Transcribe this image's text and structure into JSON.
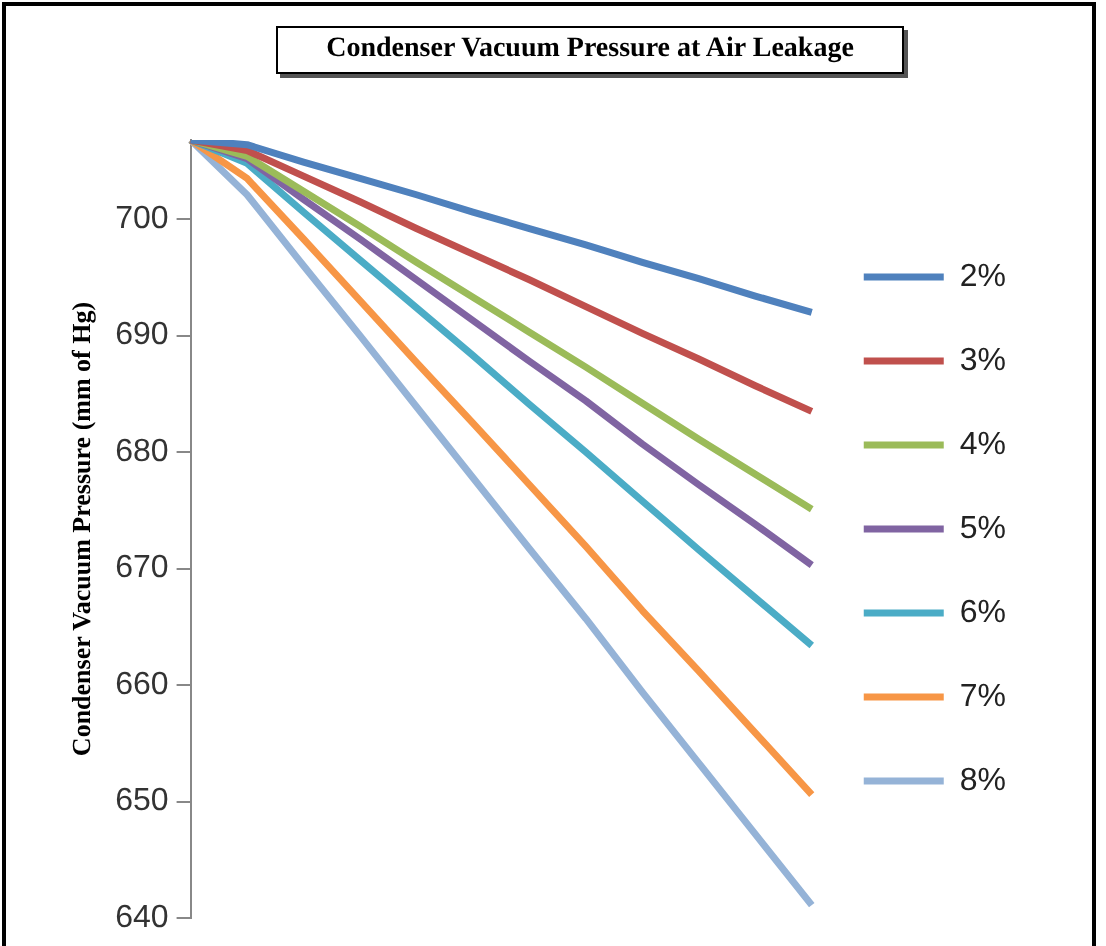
{
  "chart_data": {
    "type": "line",
    "title": "Condenser Vacuum Pressure at Air Leakage",
    "ylabel": "Condenser Vacuum Pressure (mm of Hg)",
    "categories": [
      null,
      null,
      null,
      null,
      null,
      null,
      null,
      null,
      null,
      null,
      null,
      null
    ],
    "series": [
      {
        "name": "2%",
        "color": "#4f81bd",
        "values": [
          706.8,
          706.4,
          704.9,
          703.5,
          702.1,
          700.6,
          699.2,
          697.8,
          696.3,
          694.9,
          693.4,
          692.0
        ]
      },
      {
        "name": "3%",
        "color": "#c0504d",
        "values": [
          706.8,
          705.9,
          703.7,
          701.5,
          699.2,
          697.0,
          694.8,
          692.5,
          690.2,
          688.0,
          685.7,
          683.5
        ]
      },
      {
        "name": "4%",
        "color": "#9bbb59",
        "values": [
          706.8,
          705.4,
          702.4,
          699.4,
          696.3,
          693.3,
          690.3,
          687.3,
          684.2,
          681.1,
          678.1,
          675.1
        ]
      },
      {
        "name": "5%",
        "color": "#8064a2",
        "values": [
          706.8,
          705.2,
          701.7,
          698.3,
          694.8,
          691.3,
          687.8,
          684.4,
          680.7,
          677.2,
          673.8,
          670.3
        ]
      },
      {
        "name": "6%",
        "color": "#4bacc6",
        "values": [
          706.8,
          704.8,
          700.6,
          696.5,
          692.4,
          688.3,
          684.1,
          680.0,
          675.8,
          671.6,
          667.5,
          663.4
        ]
      },
      {
        "name": "7%",
        "color": "#f79646",
        "values": [
          706.8,
          703.5,
          698.3,
          693.0,
          687.7,
          682.5,
          677.2,
          671.9,
          666.4,
          661.2,
          655.9,
          650.6
        ]
      },
      {
        "name": "8%",
        "color": "#95b3d7",
        "values": [
          706.8,
          702.1,
          696.0,
          690.0,
          683.9,
          677.8,
          671.7,
          665.7,
          659.4,
          653.3,
          647.2,
          641.1
        ]
      }
    ],
    "ylim": [
      640,
      706.8
    ],
    "yticks": [
      640,
      650,
      660,
      670,
      680,
      690,
      700
    ],
    "grid": false,
    "legend": "right",
    "marker": "none",
    "line_style": "solid",
    "tick_labels": "y"
  }
}
